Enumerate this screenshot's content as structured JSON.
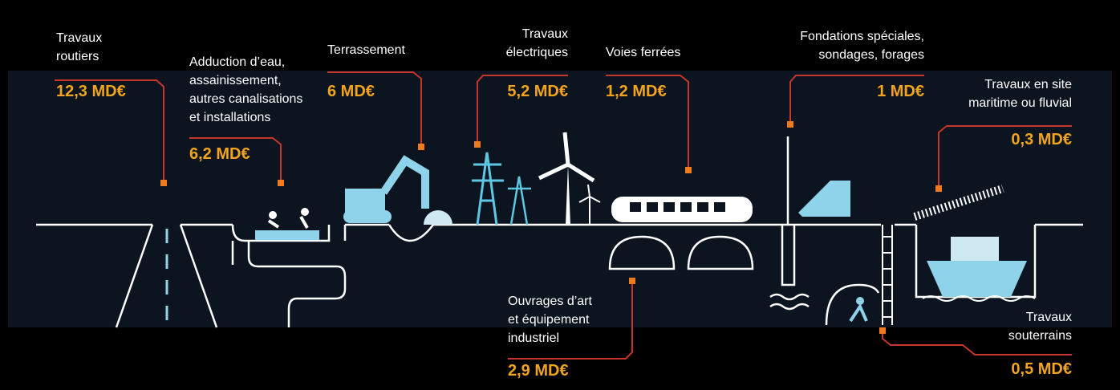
{
  "items": [
    {
      "label": [
        "Travaux",
        "routiers"
      ],
      "amount": "12,3 MD€"
    },
    {
      "label": [
        "Adduction d’eau,",
        "assainissement,",
        "autres canalisations",
        "et installations"
      ],
      "amount": "6,2 MD€"
    },
    {
      "label": [
        "Terrassement"
      ],
      "amount": "6 MD€"
    },
    {
      "label": [
        "Travaux",
        "électriques"
      ],
      "amount": "5,2 MD€"
    },
    {
      "label": [
        "Voies ferrées"
      ],
      "amount": "1,2 MD€"
    },
    {
      "label": [
        "Fondations spéciales,",
        "sondages, forages"
      ],
      "amount": "1 MD€"
    },
    {
      "label": [
        "Travaux en site",
        "maritime ou fluvial"
      ],
      "amount": "0,3 MD€"
    },
    {
      "label": [
        "Ouvrages d’art",
        "et équipement",
        "industriel"
      ],
      "amount": "2,9 MD€"
    },
    {
      "label": [
        "Travaux",
        "souterrains"
      ],
      "amount": "0,5 MD€"
    }
  ]
}
